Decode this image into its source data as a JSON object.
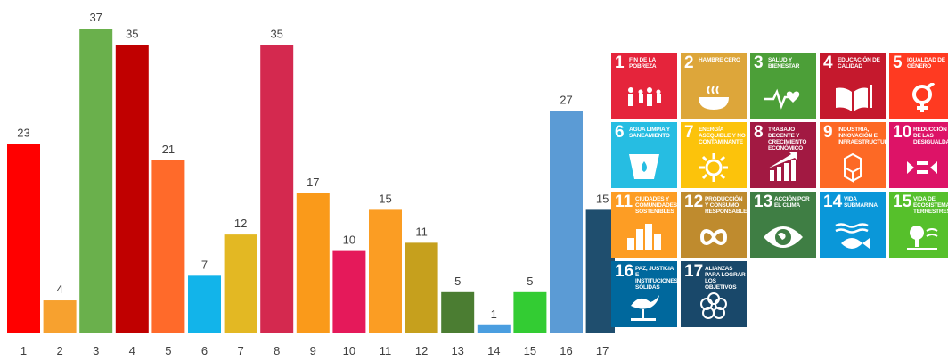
{
  "chart_data": {
    "type": "bar",
    "categories": [
      "1",
      "2",
      "3",
      "4",
      "5",
      "6",
      "7",
      "8",
      "9",
      "10",
      "11",
      "12",
      "13",
      "14",
      "15",
      "16",
      "17"
    ],
    "values": [
      23,
      4,
      37,
      35,
      21,
      7,
      12,
      35,
      17,
      10,
      15,
      11,
      5,
      1,
      5,
      27,
      15
    ],
    "colors": [
      "#ff0000",
      "#f7a12f",
      "#6ab04c",
      "#c00000",
      "#ff6a2a",
      "#12b4ea",
      "#e3b823",
      "#d4294f",
      "#fa9a1a",
      "#e5195a",
      "#fb9d23",
      "#c6a01d",
      "#4b7d32",
      "#4a9ee0",
      "#33cc33",
      "#5b9bd5",
      "#1f4e6e"
    ],
    "title": "",
    "xlabel": "",
    "ylabel": "",
    "ylim": [
      0,
      40
    ],
    "grid": false,
    "data_labels": true
  },
  "sdg_tiles": [
    {
      "num": "1",
      "label": "Fin de la pobreza",
      "color": "#e5243b",
      "icon": "family-icon"
    },
    {
      "num": "2",
      "label": "Hambre cero",
      "color": "#dda63a",
      "icon": "bowl-icon"
    },
    {
      "num": "3",
      "label": "Salud y bienestar",
      "color": "#4c9f38",
      "icon": "heartbeat-icon"
    },
    {
      "num": "4",
      "label": "Educación de calidad",
      "color": "#c5192d",
      "icon": "book-icon"
    },
    {
      "num": "5",
      "label": "Igualdad de género",
      "color": "#ff3a21",
      "icon": "gender-icon"
    },
    {
      "num": "6",
      "label": "Agua limpia y saneamiento",
      "color": "#26bde2",
      "icon": "water-icon"
    },
    {
      "num": "7",
      "label": "Energía asequible y no contaminante",
      "color": "#fcc30b",
      "icon": "sun-icon"
    },
    {
      "num": "8",
      "label": "Trabajo decente y crecimiento económico",
      "color": "#a21942",
      "icon": "growth-chart-icon"
    },
    {
      "num": "9",
      "label": "Industria, innovación e infraestructura",
      "color": "#fd6925",
      "icon": "cubes-icon"
    },
    {
      "num": "10",
      "label": "Reducción de las desigualdades",
      "color": "#dd1367",
      "icon": "equality-icon"
    },
    {
      "num": "11",
      "label": "Ciudades y comunidades sostenibles",
      "color": "#fd9d24",
      "icon": "city-icon"
    },
    {
      "num": "12",
      "label": "Producción y consumo responsables",
      "color": "#bf8b2e",
      "icon": "infinity-icon"
    },
    {
      "num": "13",
      "label": "Acción por el clima",
      "color": "#3f7e44",
      "icon": "eye-globe-icon"
    },
    {
      "num": "14",
      "label": "Vida submarina",
      "color": "#0a97d9",
      "icon": "fish-icon"
    },
    {
      "num": "15",
      "label": "Vida de ecosistemas terrestres",
      "color": "#56c02b",
      "icon": "tree-icon"
    },
    {
      "num": "16",
      "label": "Paz, justicia e instituciones sólidas",
      "color": "#00689d",
      "icon": "dove-icon"
    },
    {
      "num": "17",
      "label": "Alianzas para lograr los objetivos",
      "color": "#19486a",
      "icon": "rings-icon"
    }
  ]
}
